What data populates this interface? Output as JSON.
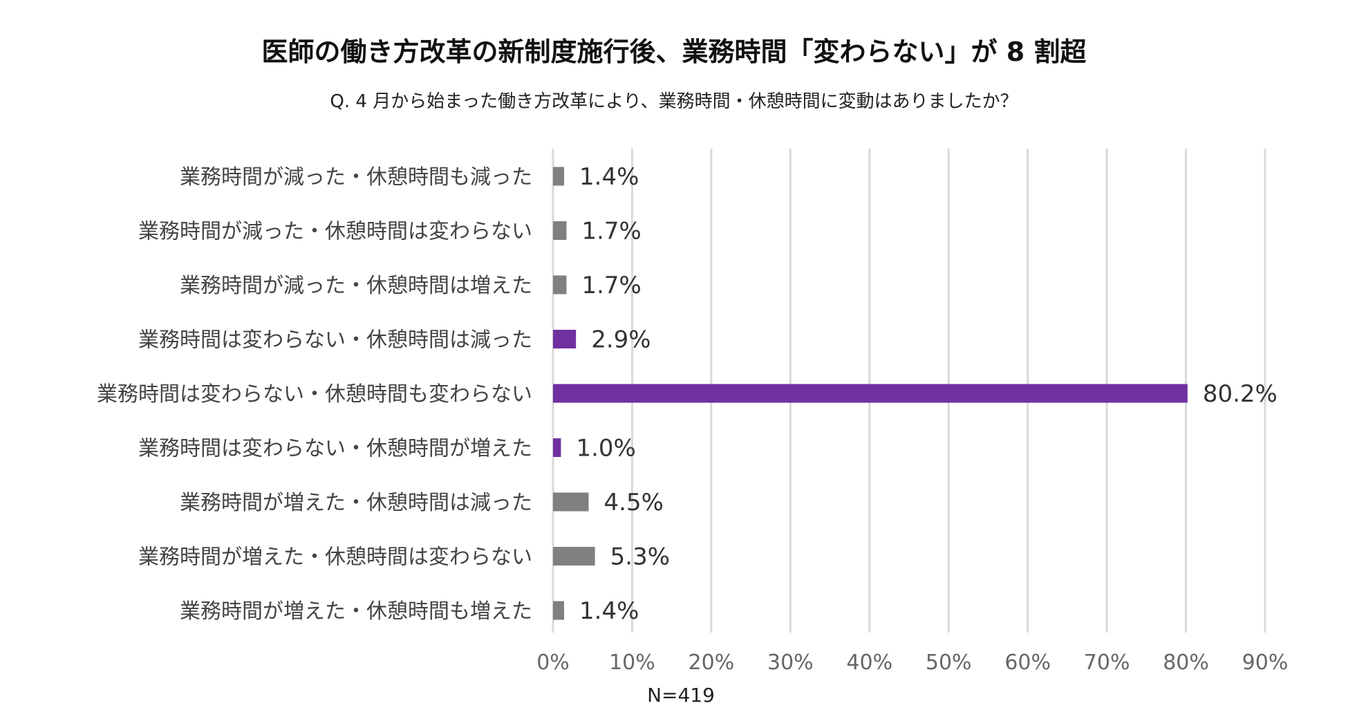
{
  "chart_data": {
    "type": "bar",
    "orientation": "horizontal",
    "title": "医師の働き方改革の新制度施行後、業務時間「変わらない」が 8 割超",
    "subtitle": "Q. 4 月から始まった働き方改革により、業務時間・休憩時間に変動はありましたか？",
    "categories": [
      "業務時間が減った・休憩時間も減った",
      "業務時間が減った・休憩時間は変わらない",
      "業務時間が減った・休憩時間は増えた",
      "業務時間は変わらない・休憩時間は減った",
      "業務時間は変わらない・休憩時間も変わらない",
      "業務時間は変わらない・休憩時間が増えた",
      "業務時間が増えた・休憩時間は減った",
      "業務時間が増えた・休憩時間は変わらない",
      "業務時間が増えた・休憩時間も増えた"
    ],
    "values": [
      1.4,
      1.7,
      1.7,
      2.9,
      80.2,
      1.0,
      4.5,
      5.3,
      1.4
    ],
    "value_labels": [
      "1.4%",
      "1.7%",
      "1.7%",
      "2.9%",
      "80.2%",
      "1.0%",
      "4.5%",
      "5.3%",
      "1.4%"
    ],
    "bar_colors": [
      "#808080",
      "#808080",
      "#808080",
      "#7030a0",
      "#7030a0",
      "#7030a0",
      "#808080",
      "#808080",
      "#808080"
    ],
    "x_ticks": [
      0,
      10,
      20,
      30,
      40,
      50,
      60,
      70,
      80,
      90
    ],
    "x_tick_labels": [
      "0%",
      "10%",
      "20%",
      "30%",
      "40%",
      "50%",
      "60%",
      "70%",
      "80%",
      "90%"
    ],
    "xlim": [
      0,
      90
    ],
    "grid": true,
    "xlabel": "",
    "ylabel": "",
    "note": "N=419"
  }
}
